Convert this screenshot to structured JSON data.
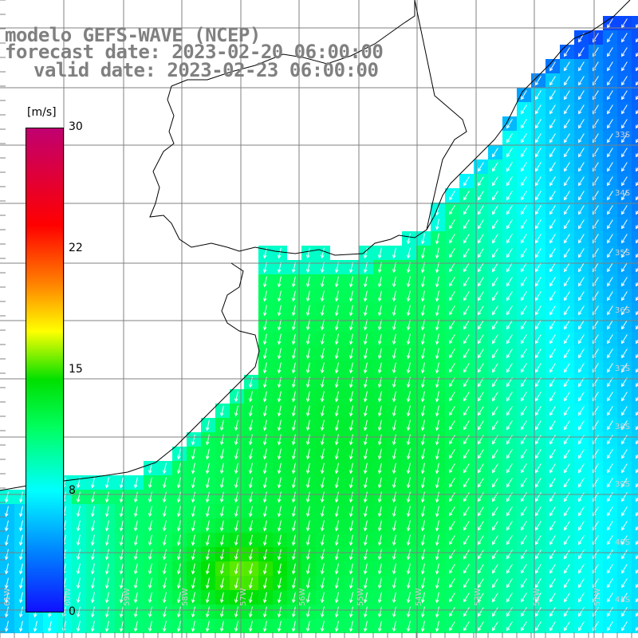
{
  "title": {
    "line1": "modelo GEFS-WAVE (NCEP)",
    "line2": "forecast date: 2023-02-20 06:00:00",
    "line3": "valid date: 2023-02-23 06:00:00"
  },
  "colorbar": {
    "unit": "[m/s]",
    "min": 0,
    "max": 30,
    "ticks": [
      "30",
      "22",
      "15",
      "8",
      "0"
    ],
    "tick_values": [
      30,
      22,
      15,
      8,
      0
    ]
  },
  "grid": {
    "longitude_labels": [
      "61W",
      "60W",
      "59W",
      "58W",
      "57W",
      "56W",
      "55W",
      "54W",
      "53W",
      "52W",
      "51W"
    ],
    "latitude_labels": [
      "33S",
      "34S",
      "35S",
      "36S",
      "37S",
      "38S",
      "39S",
      "40S",
      "41S"
    ]
  },
  "colors": {
    "land": "#ffffff",
    "coast": "#000000",
    "grid": "#808080",
    "arrows": "#ffffff",
    "title": "#808080"
  }
}
